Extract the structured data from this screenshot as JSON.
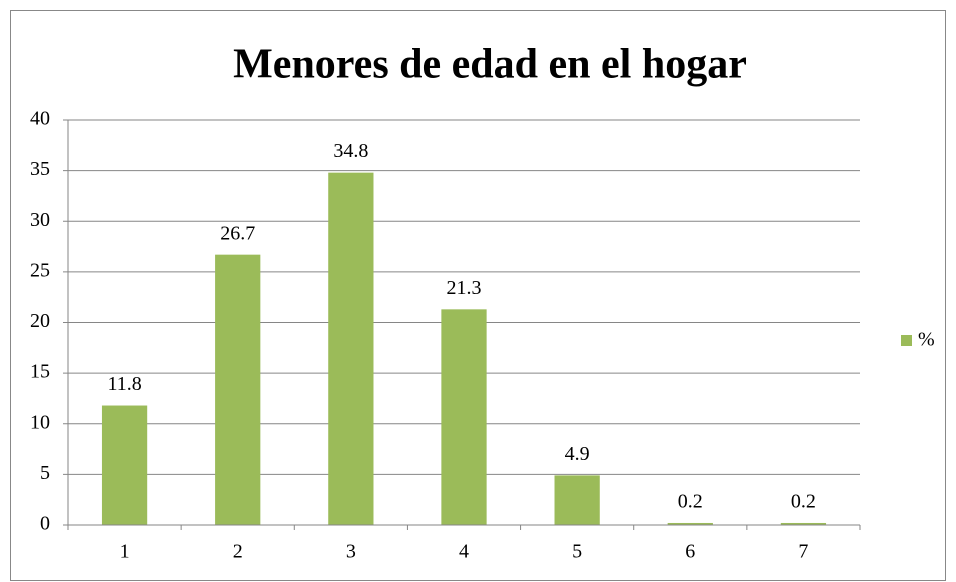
{
  "chart_data": {
    "type": "bar",
    "title": "Menores de edad en el hogar",
    "categories": [
      "1",
      "2",
      "3",
      "4",
      "5",
      "6",
      "7"
    ],
    "series": [
      {
        "name": "%",
        "color": "#9bbb59",
        "values": [
          11.8,
          26.7,
          34.8,
          21.3,
          4.9,
          0.2,
          0.2
        ]
      }
    ],
    "ylim": [
      0,
      40
    ],
    "yticks": [
      0,
      5,
      10,
      15,
      20,
      25,
      30,
      35,
      40
    ],
    "grid": true,
    "legend": "right"
  }
}
